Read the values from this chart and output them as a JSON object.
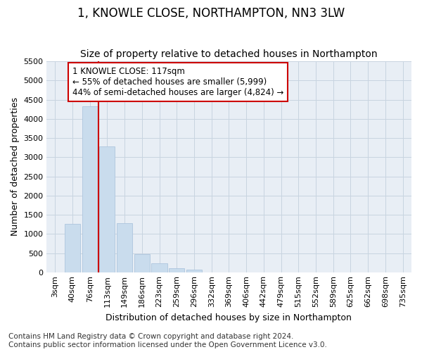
{
  "title": "1, KNOWLE CLOSE, NORTHAMPTON, NN3 3LW",
  "subtitle": "Size of property relative to detached houses in Northampton",
  "xlabel": "Distribution of detached houses by size in Northampton",
  "ylabel": "Number of detached properties",
  "categories": [
    "3sqm",
    "40sqm",
    "76sqm",
    "113sqm",
    "149sqm",
    "186sqm",
    "223sqm",
    "259sqm",
    "296sqm",
    "332sqm",
    "369sqm",
    "406sqm",
    "442sqm",
    "479sqm",
    "515sqm",
    "552sqm",
    "589sqm",
    "625sqm",
    "662sqm",
    "698sqm",
    "735sqm"
  ],
  "values": [
    0,
    1270,
    4330,
    3280,
    1280,
    480,
    235,
    100,
    70,
    0,
    0,
    0,
    0,
    0,
    0,
    0,
    0,
    0,
    0,
    0,
    0
  ],
  "bar_color": "#c9dced",
  "bar_edge_color": "#adc6de",
  "vline_color": "#cc0000",
  "vline_x_index": 3,
  "annotation_text": "1 KNOWLE CLOSE: 117sqm\n← 55% of detached houses are smaller (5,999)\n44% of semi-detached houses are larger (4,824) →",
  "annotation_box_color": "#ffffff",
  "annotation_box_edgecolor": "#cc0000",
  "ylim": [
    0,
    5500
  ],
  "yticks": [
    0,
    500,
    1000,
    1500,
    2000,
    2500,
    3000,
    3500,
    4000,
    4500,
    5000,
    5500
  ],
  "footer": "Contains HM Land Registry data © Crown copyright and database right 2024.\nContains public sector information licensed under the Open Government Licence v3.0.",
  "bg_color": "#ffffff",
  "plot_bg_color": "#e8eef5",
  "grid_color": "#c8d4e0",
  "title_fontsize": 12,
  "subtitle_fontsize": 10,
  "axis_label_fontsize": 9,
  "tick_fontsize": 8,
  "annotation_fontsize": 8.5,
  "footer_fontsize": 7.5
}
